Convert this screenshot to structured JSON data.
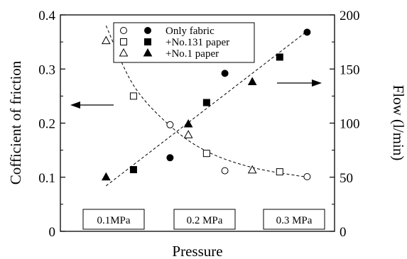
{
  "chart_data": {
    "type": "scatter",
    "xlabel": "Pressure",
    "ylabel_left": "Cofficient of friction",
    "ylabel_right": "Flow (l/min)",
    "ylim_left": [
      0,
      0.4
    ],
    "ylim_right": [
      0,
      200
    ],
    "yticks_left": [
      "0",
      "0.1",
      "0.2",
      "0.3",
      "0.4"
    ],
    "yticks_right": [
      "0",
      "50",
      "100",
      "150",
      "200"
    ],
    "x_categories": [
      "0.1MPa",
      "0.2 MPa",
      "0.3 MPa"
    ],
    "grid": false,
    "legend_placement": "top-center",
    "legend": [
      {
        "label": "Only fabric",
        "open_marker": "circle",
        "filled_marker": "circle"
      },
      {
        "label": "+No.131 paper",
        "open_marker": "square",
        "filled_marker": "square"
      },
      {
        "label": "+No.1 paper",
        "open_marker": "triangle",
        "filled_marker": "triangle"
      }
    ],
    "series": [
      {
        "name": "Only fabric",
        "axis": "left",
        "marker": "circle",
        "filled": false,
        "points": [
          {
            "x": 0.17,
            "y": 0.197
          },
          {
            "x": 0.23,
            "y": 0.112
          },
          {
            "x": 0.32,
            "y": 0.101
          }
        ]
      },
      {
        "name": "+No.131 paper",
        "axis": "left",
        "marker": "square",
        "filled": false,
        "points": [
          {
            "x": 0.13,
            "y": 0.25
          },
          {
            "x": 0.21,
            "y": 0.144
          },
          {
            "x": 0.29,
            "y": 0.11
          }
        ]
      },
      {
        "name": "+No.1 paper",
        "axis": "left",
        "marker": "triangle",
        "filled": false,
        "points": [
          {
            "x": 0.1,
            "y": 0.352
          },
          {
            "x": 0.19,
            "y": 0.178
          },
          {
            "x": 0.26,
            "y": 0.113
          }
        ]
      },
      {
        "name": "Only fabric",
        "axis": "right",
        "marker": "circle",
        "filled": true,
        "points": [
          {
            "x": 0.17,
            "y": 68
          },
          {
            "x": 0.23,
            "y": 146
          },
          {
            "x": 0.32,
            "y": 184
          }
        ]
      },
      {
        "name": "+No.131 paper",
        "axis": "right",
        "marker": "square",
        "filled": true,
        "points": [
          {
            "x": 0.13,
            "y": 57
          },
          {
            "x": 0.21,
            "y": 119
          },
          {
            "x": 0.29,
            "y": 161
          }
        ]
      },
      {
        "name": "+No.1 paper",
        "axis": "right",
        "marker": "triangle",
        "filled": true,
        "points": [
          {
            "x": 0.1,
            "y": 50
          },
          {
            "x": 0.19,
            "y": 99
          },
          {
            "x": 0.26,
            "y": 138
          }
        ]
      }
    ],
    "fit_curves": [
      {
        "axis": "left",
        "style": "dashed",
        "points": [
          {
            "x": 0.1,
            "y": 0.38
          },
          {
            "x": 0.13,
            "y": 0.27
          },
          {
            "x": 0.17,
            "y": 0.195
          },
          {
            "x": 0.21,
            "y": 0.148
          },
          {
            "x": 0.26,
            "y": 0.118
          },
          {
            "x": 0.32,
            "y": 0.1
          }
        ]
      },
      {
        "axis": "right",
        "style": "dashed",
        "points": [
          {
            "x": 0.1,
            "y": 42
          },
          {
            "x": 0.32,
            "y": 185
          }
        ]
      }
    ],
    "annotations": [
      {
        "type": "arrow",
        "direction": "left",
        "axis": "left"
      },
      {
        "type": "arrow",
        "direction": "right",
        "axis": "right"
      }
    ]
  }
}
